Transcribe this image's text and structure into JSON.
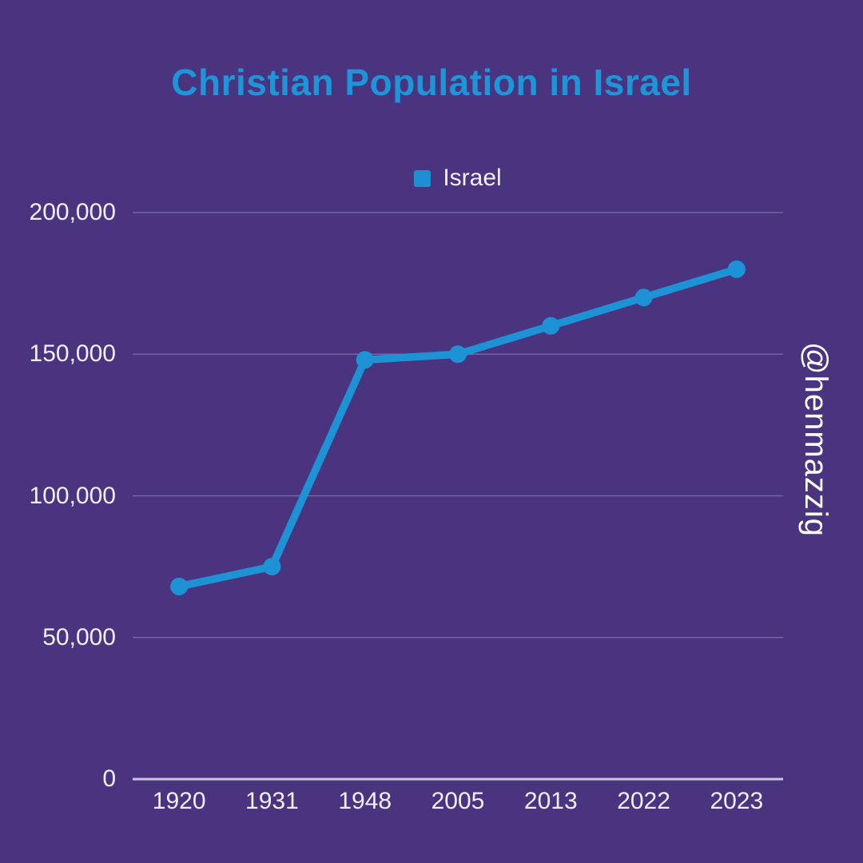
{
  "page": {
    "background": "#4A3480",
    "watermark": "@henmazzig",
    "text_color": "#F1EEF8"
  },
  "chart_data": {
    "type": "line",
    "title": "Christian Population in Israel",
    "title_color": "#1D96D9",
    "categories": [
      "1920",
      "1931",
      "1948",
      "2005",
      "2013",
      "2022",
      "2023"
    ],
    "series": [
      {
        "name": "Israel",
        "color": "#1D93D6",
        "values": [
          68000,
          75000,
          148000,
          150000,
          160000,
          170000,
          180000
        ]
      }
    ],
    "y_ticks": [
      {
        "label": "0",
        "value": 0
      },
      {
        "label": "50,000",
        "value": 50000
      },
      {
        "label": "100,000",
        "value": 100000
      },
      {
        "label": "150,000",
        "value": 150000
      },
      {
        "label": "200,000",
        "value": 200000
      }
    ],
    "ylim": [
      0,
      200000
    ],
    "xlabel": "",
    "ylabel": "",
    "grid": true,
    "gridline_color": "#9A90BE",
    "axis_line_color": "#CCC5E0",
    "legend_position": "top",
    "legend_swatch_color": "#1E8FD1",
    "marker": "circle"
  }
}
